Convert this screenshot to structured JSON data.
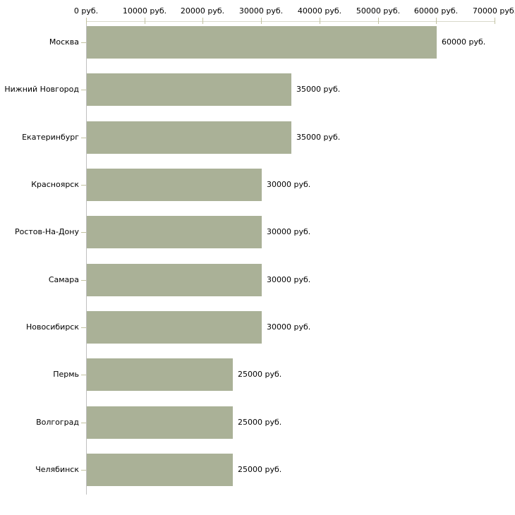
{
  "chart": {
    "unit_suffix": " руб.",
    "colors": {
      "bar": "#aab197",
      "tick": "#c2c2a0",
      "x_axis_line": "#d8d8ca",
      "y_axis_line": "#bfbfbf",
      "text": "#000000",
      "background": "#ffffff"
    }
  },
  "chart_data": {
    "type": "bar",
    "orientation": "horizontal",
    "title": "",
    "xlabel": "",
    "ylabel": "",
    "grid": false,
    "legend": false,
    "axis_position": "top",
    "xlim": [
      0,
      70000
    ],
    "x_tick_values": [
      0,
      10000,
      20000,
      30000,
      40000,
      50000,
      60000,
      70000
    ],
    "x_tick_labels": [
      "0 руб.",
      "10000 руб.",
      "20000 руб.",
      "30000 руб.",
      "40000 руб.",
      "50000 руб.",
      "60000 руб.",
      "70000 руб."
    ],
    "categories": [
      "Москва",
      "Нижний Новгород",
      "Екатеринбург",
      "Красноярск",
      "Ростов-На-Дону",
      "Самара",
      "Новосибирск",
      "Пермь",
      "Волгоград",
      "Челябинск"
    ],
    "values": [
      60000,
      35000,
      35000,
      30000,
      30000,
      30000,
      30000,
      25000,
      25000,
      25000
    ],
    "value_labels": [
      "60000 руб.",
      "35000 руб.",
      "35000 руб.",
      "30000 руб.",
      "30000 руб.",
      "30000 руб.",
      "30000 руб.",
      "25000 руб.",
      "25000 руб.",
      "25000 руб."
    ]
  }
}
